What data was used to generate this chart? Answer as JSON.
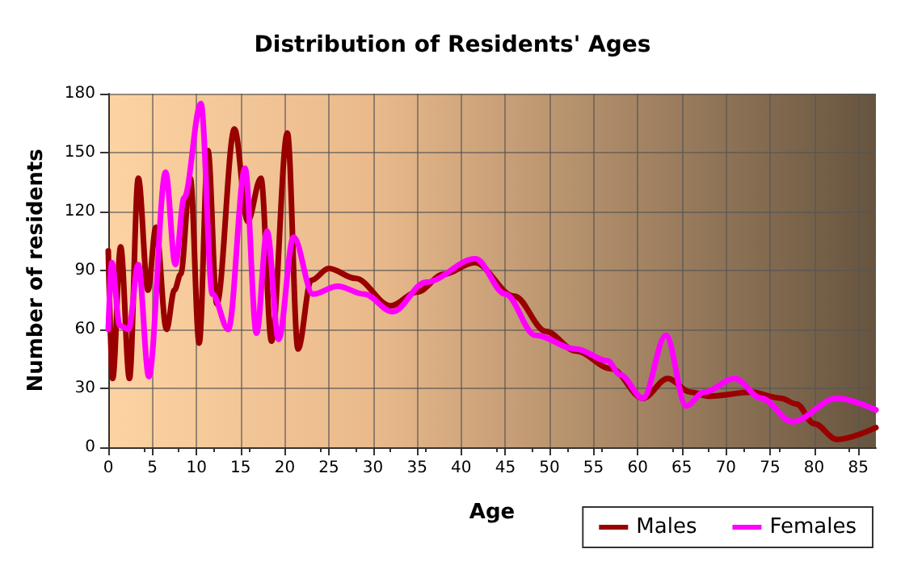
{
  "chart_data": {
    "type": "line",
    "title": "Distribution of Residents' Ages",
    "xlabel": "Age",
    "ylabel": "Number of residents",
    "xlim": [
      0,
      87
    ],
    "xticks": [
      0,
      5,
      10,
      15,
      20,
      25,
      30,
      35,
      40,
      45,
      50,
      55,
      60,
      65,
      70,
      75,
      80,
      85
    ],
    "ylim": [
      0,
      180
    ],
    "yticks": [
      0,
      30,
      60,
      90,
      120,
      150,
      180
    ],
    "grid": true,
    "legend": "bottom right",
    "marker": "none",
    "line_style": "solid",
    "series": [
      {
        "name": "Males",
        "color": "#990000",
        "x": [
          0,
          0.5,
          1.4,
          2.4,
          3.4,
          4.5,
          5.4,
          6.6,
          7.5,
          8.2,
          9.3,
          10.3,
          11.3,
          12.3,
          14.3,
          15.8,
          17.3,
          18.5,
          20.3,
          21.5,
          23,
          25,
          28,
          32,
          35,
          38,
          41.5,
          46,
          49.6,
          53,
          57,
          60.6,
          63.4,
          66,
          68.2,
          72.9,
          76.2,
          78,
          80,
          82.6,
          87
        ],
        "values": [
          100,
          35,
          102,
          35,
          137,
          80,
          112,
          60,
          80,
          88,
          137,
          53,
          151,
          73,
          162,
          115,
          137,
          54,
          160,
          50,
          85,
          91,
          86,
          72,
          79,
          88,
          94,
          77,
          59,
          49,
          40,
          25,
          35,
          28,
          26,
          28,
          25,
          22,
          12,
          4,
          10
        ]
      },
      {
        "name": "Females",
        "color": "#ff00ff",
        "x": [
          0,
          0.4,
          1.3,
          2.3,
          3.4,
          4.6,
          6.5,
          7.6,
          8.6,
          10.5,
          11.8,
          13.6,
          15.5,
          16.8,
          18,
          19.3,
          21,
          23.2,
          26,
          29,
          32.2,
          36,
          41.6,
          45,
          48.4,
          53,
          56.6,
          58,
          60.6,
          63.2,
          65.5,
          67.5,
          71,
          74,
          77.5,
          82.6,
          87
        ],
        "values": [
          60,
          94,
          62,
          60,
          93,
          36,
          140,
          93,
          127,
          175,
          78,
          60,
          142,
          58,
          110,
          55,
          107,
          78,
          82,
          78,
          69,
          84,
          96,
          78,
          57,
          50,
          44,
          37,
          25,
          57,
          21,
          28,
          35,
          25,
          13,
          25,
          19
        ]
      }
    ]
  }
}
